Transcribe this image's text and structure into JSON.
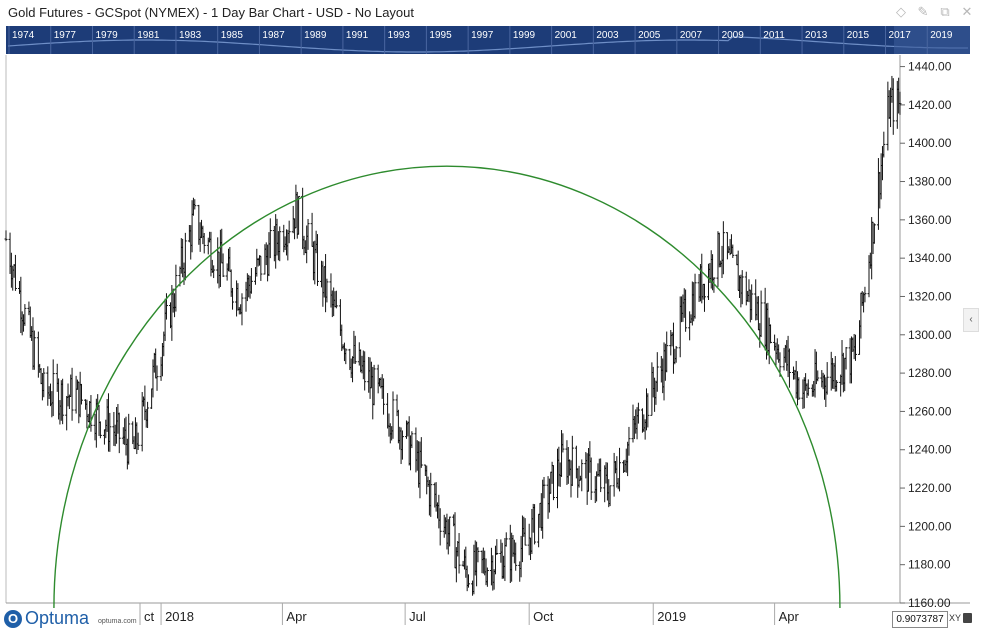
{
  "window": {
    "title": "Gold Futures - GCSpot (NYMEX) - 1 Day Bar Chart - USD - No Layout",
    "icons": [
      "diamond-icon",
      "pin-icon",
      "restore-icon",
      "close-icon"
    ]
  },
  "navigator": {
    "years": [
      "1974",
      "1977",
      "1979",
      "1981",
      "1983",
      "1985",
      "1987",
      "1989",
      "1991",
      "1993",
      "1995",
      "1997",
      "1999",
      "2001",
      "2003",
      "2005",
      "2007",
      "2009",
      "2011",
      "2013",
      "2015",
      "2017",
      "2019"
    ]
  },
  "footer": {
    "logo_text": "Optuma",
    "logo_url": "optuma.com",
    "readout_value": "0.9073787",
    "xy_label": "XY"
  },
  "chart_data": {
    "type": "bar",
    "subtype": "ohlc",
    "instrument": "Gold Futures - GCSpot (NYMEX)",
    "interval": "1 Day",
    "currency": "USD",
    "x_tick_labels": [
      "ct",
      "2018",
      "Apr",
      "Jul",
      "Oct",
      "2019",
      "Apr"
    ],
    "y_axis": {
      "position": "right",
      "ylim": [
        1160,
        1445
      ],
      "ticks": [
        1160,
        1180,
        1200,
        1220,
        1240,
        1260,
        1280,
        1300,
        1320,
        1340,
        1360,
        1380,
        1400,
        1420,
        1440
      ]
    },
    "grid": false,
    "price_path": [
      {
        "date": "2017-09-08",
        "close": 1350
      },
      {
        "date": "2017-10-06",
        "close": 1270
      },
      {
        "date": "2017-10-31",
        "close": 1268
      },
      {
        "date": "2017-12-12",
        "close": 1240
      },
      {
        "date": "2018-01-25",
        "close": 1360
      },
      {
        "date": "2018-03-01",
        "close": 1320
      },
      {
        "date": "2018-04-11",
        "close": 1365
      },
      {
        "date": "2018-05-21",
        "close": 1290
      },
      {
        "date": "2018-06-29",
        "close": 1250
      },
      {
        "date": "2018-08-16",
        "close": 1175
      },
      {
        "date": "2018-09-28",
        "close": 1190
      },
      {
        "date": "2018-10-26",
        "close": 1235
      },
      {
        "date": "2018-11-29",
        "close": 1220
      },
      {
        "date": "2019-01-31",
        "close": 1320
      },
      {
        "date": "2019-02-20",
        "close": 1345
      },
      {
        "date": "2019-04-23",
        "close": 1270
      },
      {
        "date": "2019-05-31",
        "close": 1290
      },
      {
        "date": "2019-06-25",
        "close": 1420
      },
      {
        "date": "2019-07-03",
        "close": 1420
      }
    ],
    "overlay": {
      "type": "arc",
      "color": "#2e8b2e",
      "apex": {
        "date": "2018-08-01",
        "price": 1388
      }
    }
  }
}
